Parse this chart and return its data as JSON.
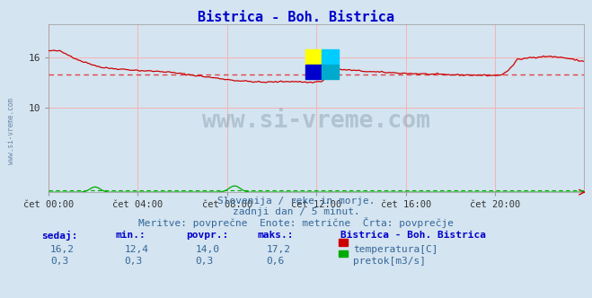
{
  "title": "Bistrica - Boh. Bistrica",
  "title_color": "#0000cc",
  "bg_color": "#d4e4f0",
  "plot_bg_color": "#d4e4f0",
  "grid_color": "#ffaaaa",
  "xlim": [
    0,
    288
  ],
  "ylim": [
    0,
    20
  ],
  "ytick_vals": [
    10,
    16
  ],
  "ytick_labels": [
    "10",
    "16"
  ],
  "xtick_positions": [
    0,
    48,
    96,
    144,
    192,
    240
  ],
  "xtick_labels": [
    "čet 00:00",
    "čet 04:00",
    "čet 08:00",
    "čet 12:00",
    "čet 16:00",
    "čet 20:00"
  ],
  "temp_avg": 14.0,
  "temp_color": "#cc0000",
  "avg_color": "#dd4444",
  "flow_color": "#00aa00",
  "footer_line1": "Slovenija / reke in morje.",
  "footer_line2": "zadnji dan / 5 minut.",
  "footer_line3": "Meritve: povprečne  Enote: metrične  Črta: povprečje",
  "watermark": "www.si-vreme.com",
  "legend_title": "Bistrica - Boh. Bistrica",
  "legend_label1": "temperatura[C]",
  "legend_label2": "pretok[m3/s]",
  "table_headers": [
    "sedaj:",
    "min.:",
    "povpr.:",
    "maks.:"
  ],
  "table_row1": [
    "16,2",
    "12,4",
    "14,0",
    "17,2"
  ],
  "table_row2": [
    "0,3",
    "0,3",
    "0,3",
    "0,6"
  ],
  "sidebar_text": "www.si-vreme.com"
}
